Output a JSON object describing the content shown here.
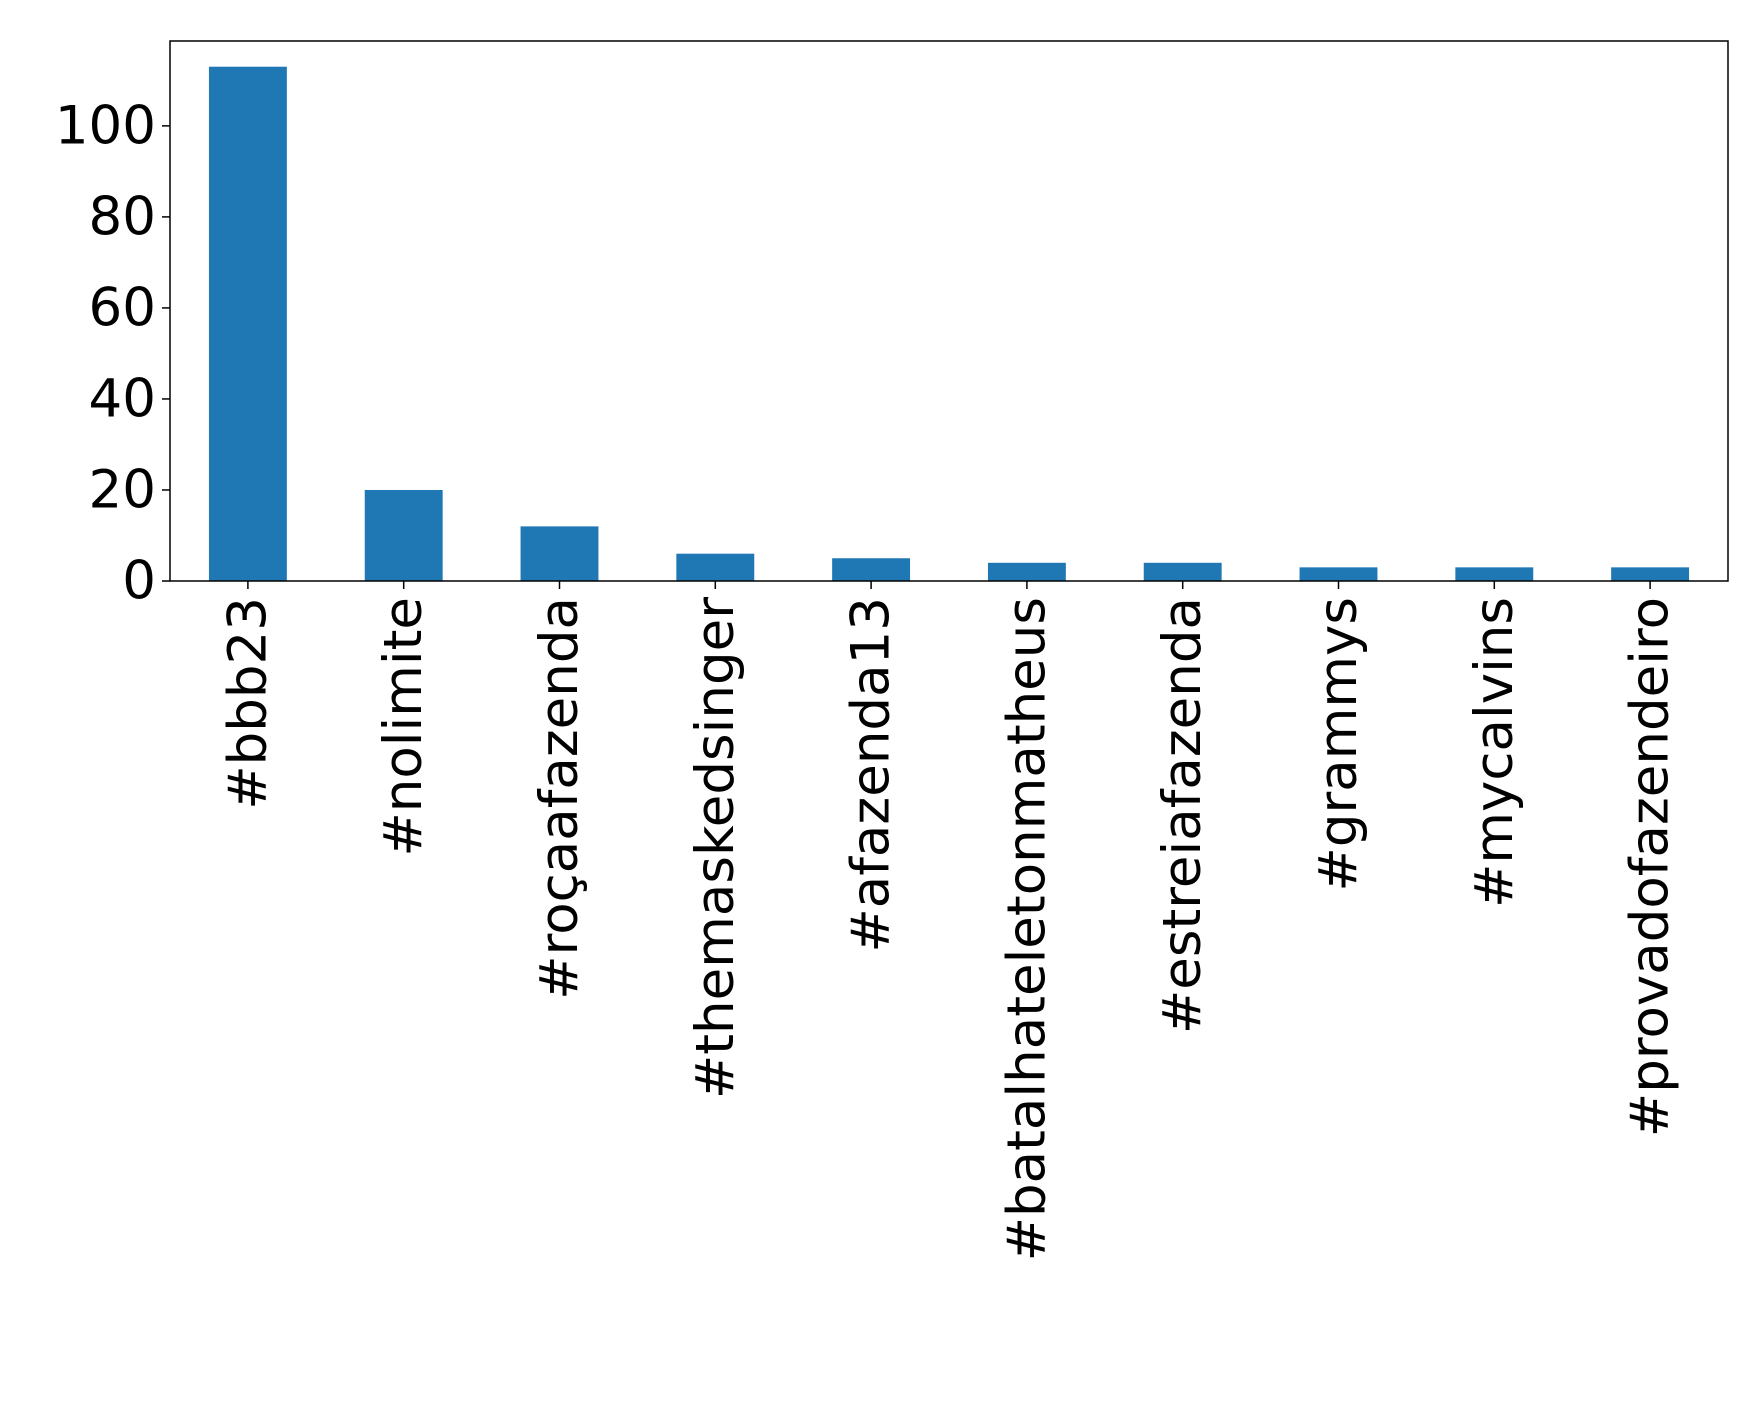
{
  "chart_data": {
    "type": "bar",
    "title": "",
    "xlabel": "",
    "ylabel": "",
    "categories": [
      "#bbb23",
      "#nolimite",
      "#roçaafazenda",
      "#themaskedsinger",
      "#afazenda13",
      "#batalhateletonmatheus",
      "#estreiafazenda",
      "#grammys",
      "#mycalvins",
      "#provadofazendeiro"
    ],
    "values": [
      113,
      20,
      12,
      6,
      5,
      4,
      4,
      3,
      3,
      3
    ],
    "ylim": [
      0,
      118.65
    ],
    "yticks": [
      0,
      20,
      40,
      60,
      80,
      100
    ],
    "grid": false,
    "legend": "none",
    "bar_color": "#1f77b4"
  }
}
